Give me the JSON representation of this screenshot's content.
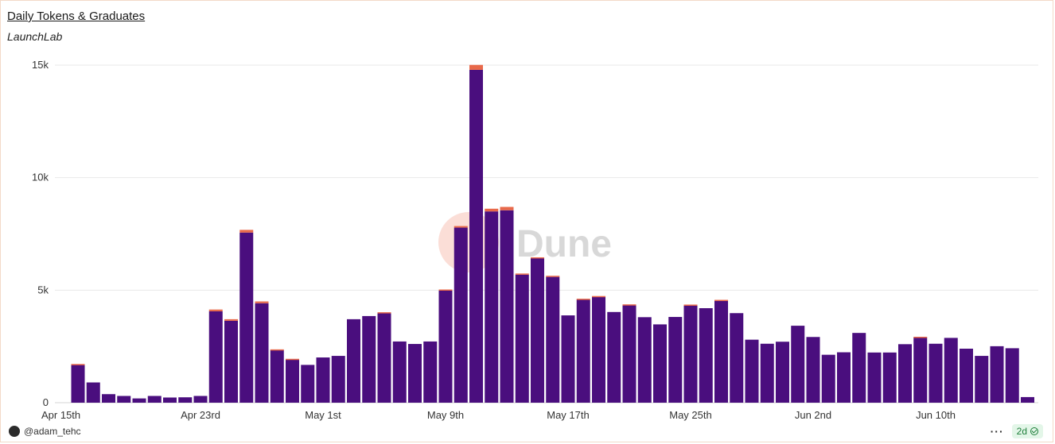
{
  "header": {
    "title": "Daily Tokens & Graduates",
    "subtitle": "LaunchLab"
  },
  "watermark": "Dune",
  "footer": {
    "author": "@adam_tehc",
    "age": "2d"
  },
  "colors": {
    "tokens": "#4a0e7e",
    "graduates": "#e8694a",
    "grid": "#e8e8e8",
    "axis_text": "#333333"
  },
  "chart_data": {
    "type": "bar",
    "stacked": true,
    "x_tick_labels": [
      "Apr 15th",
      "Apr 23rd",
      "May 1st",
      "May 9th",
      "May 17th",
      "May 25th",
      "Jun 2nd",
      "Jun 10th"
    ],
    "x_tick_indices": [
      0,
      8,
      16,
      24,
      32,
      40,
      48,
      56
    ],
    "y_tick_labels": [
      "0",
      "5k",
      "10k",
      "15k"
    ],
    "y_ticks": [
      0,
      5000,
      10000,
      15000
    ],
    "ylim": [
      0,
      15000
    ],
    "grid": true,
    "legend": "none",
    "categories": [
      "Apr 15",
      "Apr 16",
      "Apr 17",
      "Apr 18",
      "Apr 19",
      "Apr 20",
      "Apr 21",
      "Apr 22",
      "Apr 23",
      "Apr 24",
      "Apr 25",
      "Apr 26",
      "Apr 27",
      "Apr 28",
      "Apr 29",
      "Apr 30",
      "May 1",
      "May 2",
      "May 3",
      "May 4",
      "May 5",
      "May 6",
      "May 7",
      "May 8",
      "May 9",
      "May 10",
      "May 11",
      "May 12",
      "May 13",
      "May 14",
      "May 15",
      "May 16",
      "May 17",
      "May 18",
      "May 19",
      "May 20",
      "May 21",
      "May 22",
      "May 23",
      "May 24",
      "May 25",
      "May 26",
      "May 27",
      "May 28",
      "May 29",
      "May 30",
      "May 31",
      "Jun 1",
      "Jun 2",
      "Jun 3",
      "Jun 4",
      "Jun 5",
      "Jun 6",
      "Jun 7",
      "Jun 8",
      "Jun 9",
      "Jun 10",
      "Jun 11",
      "Jun 12",
      "Jun 13",
      "Jun 14",
      "Jun 15",
      "Jun 16"
    ],
    "series": [
      {
        "key": "tokens",
        "values": [
          1680,
          900,
          380,
          300,
          190,
          300,
          230,
          240,
          300,
          4060,
          3640,
          7560,
          4420,
          2340,
          1920,
          1680,
          2010,
          2080,
          3710,
          3850,
          4000,
          2720,
          2610,
          2720,
          5000,
          7780,
          14790,
          8500,
          8550,
          5690,
          6430,
          5590,
          3880,
          4580,
          4710,
          4030,
          4340,
          3800,
          3480,
          3810,
          4330,
          4200,
          4530,
          3980,
          2800,
          2620,
          2710,
          3420,
          2920,
          2130,
          2240,
          3100,
          2230,
          2230,
          2600,
          2900,
          2620,
          2880,
          2400,
          2080,
          2510,
          2420,
          250
        ]
      },
      {
        "key": "graduates",
        "values": [
          40,
          0,
          0,
          0,
          0,
          0,
          0,
          0,
          0,
          80,
          70,
          120,
          80,
          30,
          30,
          0,
          0,
          0,
          0,
          0,
          20,
          0,
          0,
          0,
          30,
          70,
          220,
          120,
          150,
          50,
          30,
          50,
          0,
          40,
          30,
          0,
          30,
          0,
          0,
          0,
          30,
          0,
          40,
          0,
          0,
          0,
          0,
          0,
          0,
          0,
          0,
          0,
          0,
          0,
          0,
          30,
          0,
          0,
          0,
          0,
          0,
          0,
          0
        ]
      }
    ]
  }
}
